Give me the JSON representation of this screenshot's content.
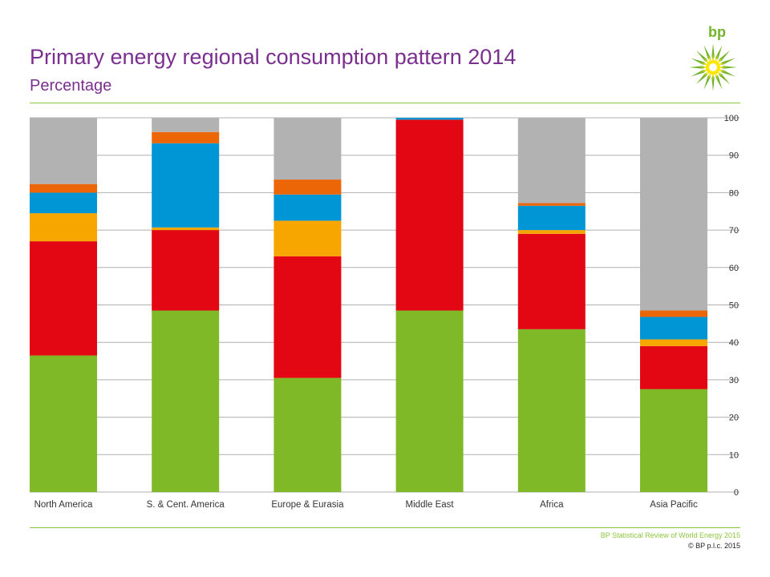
{
  "header": {
    "title": "Primary energy regional consumption pattern 2014",
    "subtitle": "Percentage",
    "logo_text": "bp"
  },
  "footer": {
    "source": "BP Statistical Review of World Energy 2015",
    "copyright": "© BP p.l.c. 2015"
  },
  "colors": {
    "title": "#7a2f8f",
    "rule": "#8cc63f",
    "logo_green": "#73b32b",
    "logo_yellow": "#ffe600"
  },
  "chart_data": {
    "type": "bar",
    "stacked": true,
    "categories": [
      "North America",
      "S. & Cent. America",
      "Europe & Eurasia",
      "Middle East",
      "Africa",
      "Asia Pacific"
    ],
    "series": [
      {
        "color": "#80b927",
        "values": [
          36.5,
          48.5,
          30.5,
          48.5,
          43.5,
          27.5
        ]
      },
      {
        "color": "#e30613",
        "values": [
          30.5,
          21.5,
          32.5,
          51.0,
          25.5,
          11.5
        ]
      },
      {
        "color": "#f7a600",
        "values": [
          7.5,
          0.7,
          9.5,
          0.0,
          1.0,
          1.8
        ]
      },
      {
        "color": "#0096d6",
        "values": [
          5.5,
          22.5,
          7.0,
          0.5,
          6.5,
          6.0
        ]
      },
      {
        "color": "#ec6608",
        "values": [
          2.3,
          3.0,
          4.0,
          0.0,
          0.7,
          1.7
        ]
      },
      {
        "color": "#b3b2b2",
        "values": [
          17.7,
          3.8,
          16.5,
          0.0,
          22.8,
          51.5
        ]
      }
    ],
    "y_ticks": [
      0,
      10,
      20,
      30,
      40,
      50,
      60,
      70,
      80,
      90,
      100
    ],
    "ylim": [
      0,
      100
    ],
    "y_axis_side": "right",
    "grid": true
  }
}
